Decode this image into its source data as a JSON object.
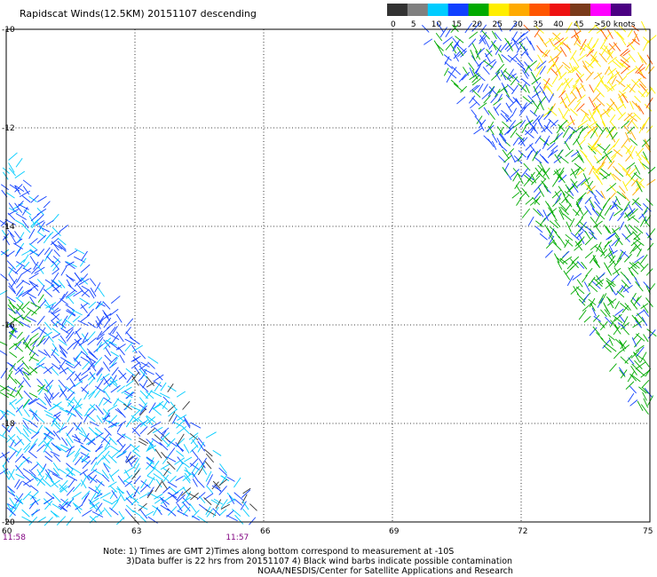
{
  "title": "Rapidscat Winds(12.5KM) 20151107 descending",
  "color_scale": {
    "unit": "knots",
    "tick_labels": [
      "0",
      "5",
      "10",
      "15",
      "20",
      "25",
      "30",
      "35",
      "40",
      "45",
      ">50 knots"
    ],
    "colors": [
      "#333333",
      "#808080",
      "#00ccff",
      "#1040ff",
      "#00aa00",
      "#ffee00",
      "#ffaa00",
      "#ff5500",
      "#ee1111",
      "#7a3a1a",
      "#ff00ff",
      "#4b0082"
    ]
  },
  "chart_data": {
    "type": "wind-barbs",
    "x_ticks": [
      "60",
      "63",
      "66",
      "69",
      "72",
      "75"
    ],
    "y_ticks": [
      "-10",
      "-12",
      "-14",
      "-16",
      "-18",
      "-20"
    ],
    "xlim": [
      60,
      75
    ],
    "ylim": [
      -20,
      -10
    ],
    "grid": true,
    "time_labels": [
      {
        "text": "11:58",
        "lon": 60.0
      },
      {
        "text": "11:57",
        "lon": 65.2
      }
    ],
    "swaths": [
      {
        "name": "east",
        "lat_top": -10,
        "lat_bottom": -17.8,
        "lon_left_top": 69.8,
        "lon_left_bottom": 74.9,
        "lon_right": 75
      },
      {
        "name": "west",
        "lat_top": -12.5,
        "lat_bottom": -20,
        "lon_left": 60,
        "lon_right_top": 60,
        "lon_right_bottom": 66
      }
    ]
  },
  "notes": {
    "line1": "Note: 1) Times are GMT 2)Times along bottom correspond to measurement at -10S",
    "line2": "3)Data buffer is 22 hrs from 20151107 4) Black wind barbs indicate possible contamination",
    "line3": "NOAA/NESDIS/Center for Satellite Applications and Research"
  }
}
